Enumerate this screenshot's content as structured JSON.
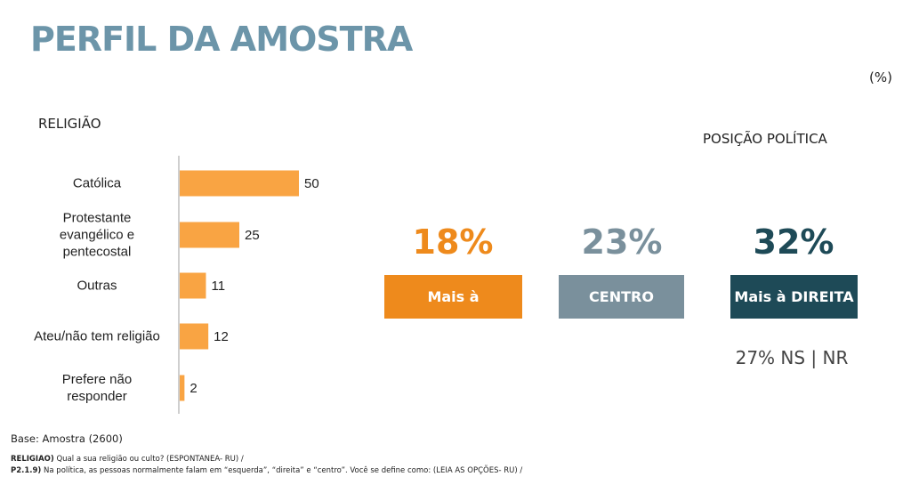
{
  "title": "PERFIL DA AMOSTRA",
  "unit": "(%)",
  "religiao_title": "RELIGIÃO",
  "posicao_title": "POSIÇÃO POLÍTICA",
  "chart_data": {
    "type": "bar",
    "orientation": "horizontal",
    "title": "RELIGIÃO",
    "categories": [
      "Católica",
      "Protestante evangélico e pentecostal",
      "Outras",
      "Ateu/não tem religião",
      "Prefere não responder"
    ],
    "category_lines": [
      [
        "Católica"
      ],
      [
        "Protestante",
        "evangélico e",
        "pentecostal"
      ],
      [
        "Outras"
      ],
      [
        "Ateu/não tem religião"
      ],
      [
        "Prefere não",
        "responder"
      ]
    ],
    "values": [
      50,
      25,
      11,
      12,
      2
    ],
    "xlim": [
      0,
      100
    ],
    "bar_color": "#f9a443"
  },
  "politica": {
    "items": [
      {
        "percent": "18%",
        "label": "Mais à ESQUERDA",
        "pct_color": "#ee8a1c",
        "bg_color": "#ee8a1c"
      },
      {
        "percent": "23%",
        "label": "CENTRO",
        "pct_color": "#7a909c",
        "bg_color": "#7a909c"
      },
      {
        "percent": "32%",
        "label": "Mais à DIREITA",
        "pct_color": "#1e4a57",
        "bg_color": "#1e4a57"
      }
    ],
    "ns_nr": "27% NS | NR"
  },
  "footer": {
    "base": "Base: Amostra (2600)",
    "note1_code": "RELIGIAO)",
    "note1_text": " Qual a sua religião ou culto? (ESPONTANEA- RU) /",
    "note2_code": "P2.1.9)",
    "note2_text": " Na política, as pessoas normalmente falam em “esquerda”, “direita” e “centro”. Você se define como: (LEIA AS OPÇÕES- RU) /"
  }
}
